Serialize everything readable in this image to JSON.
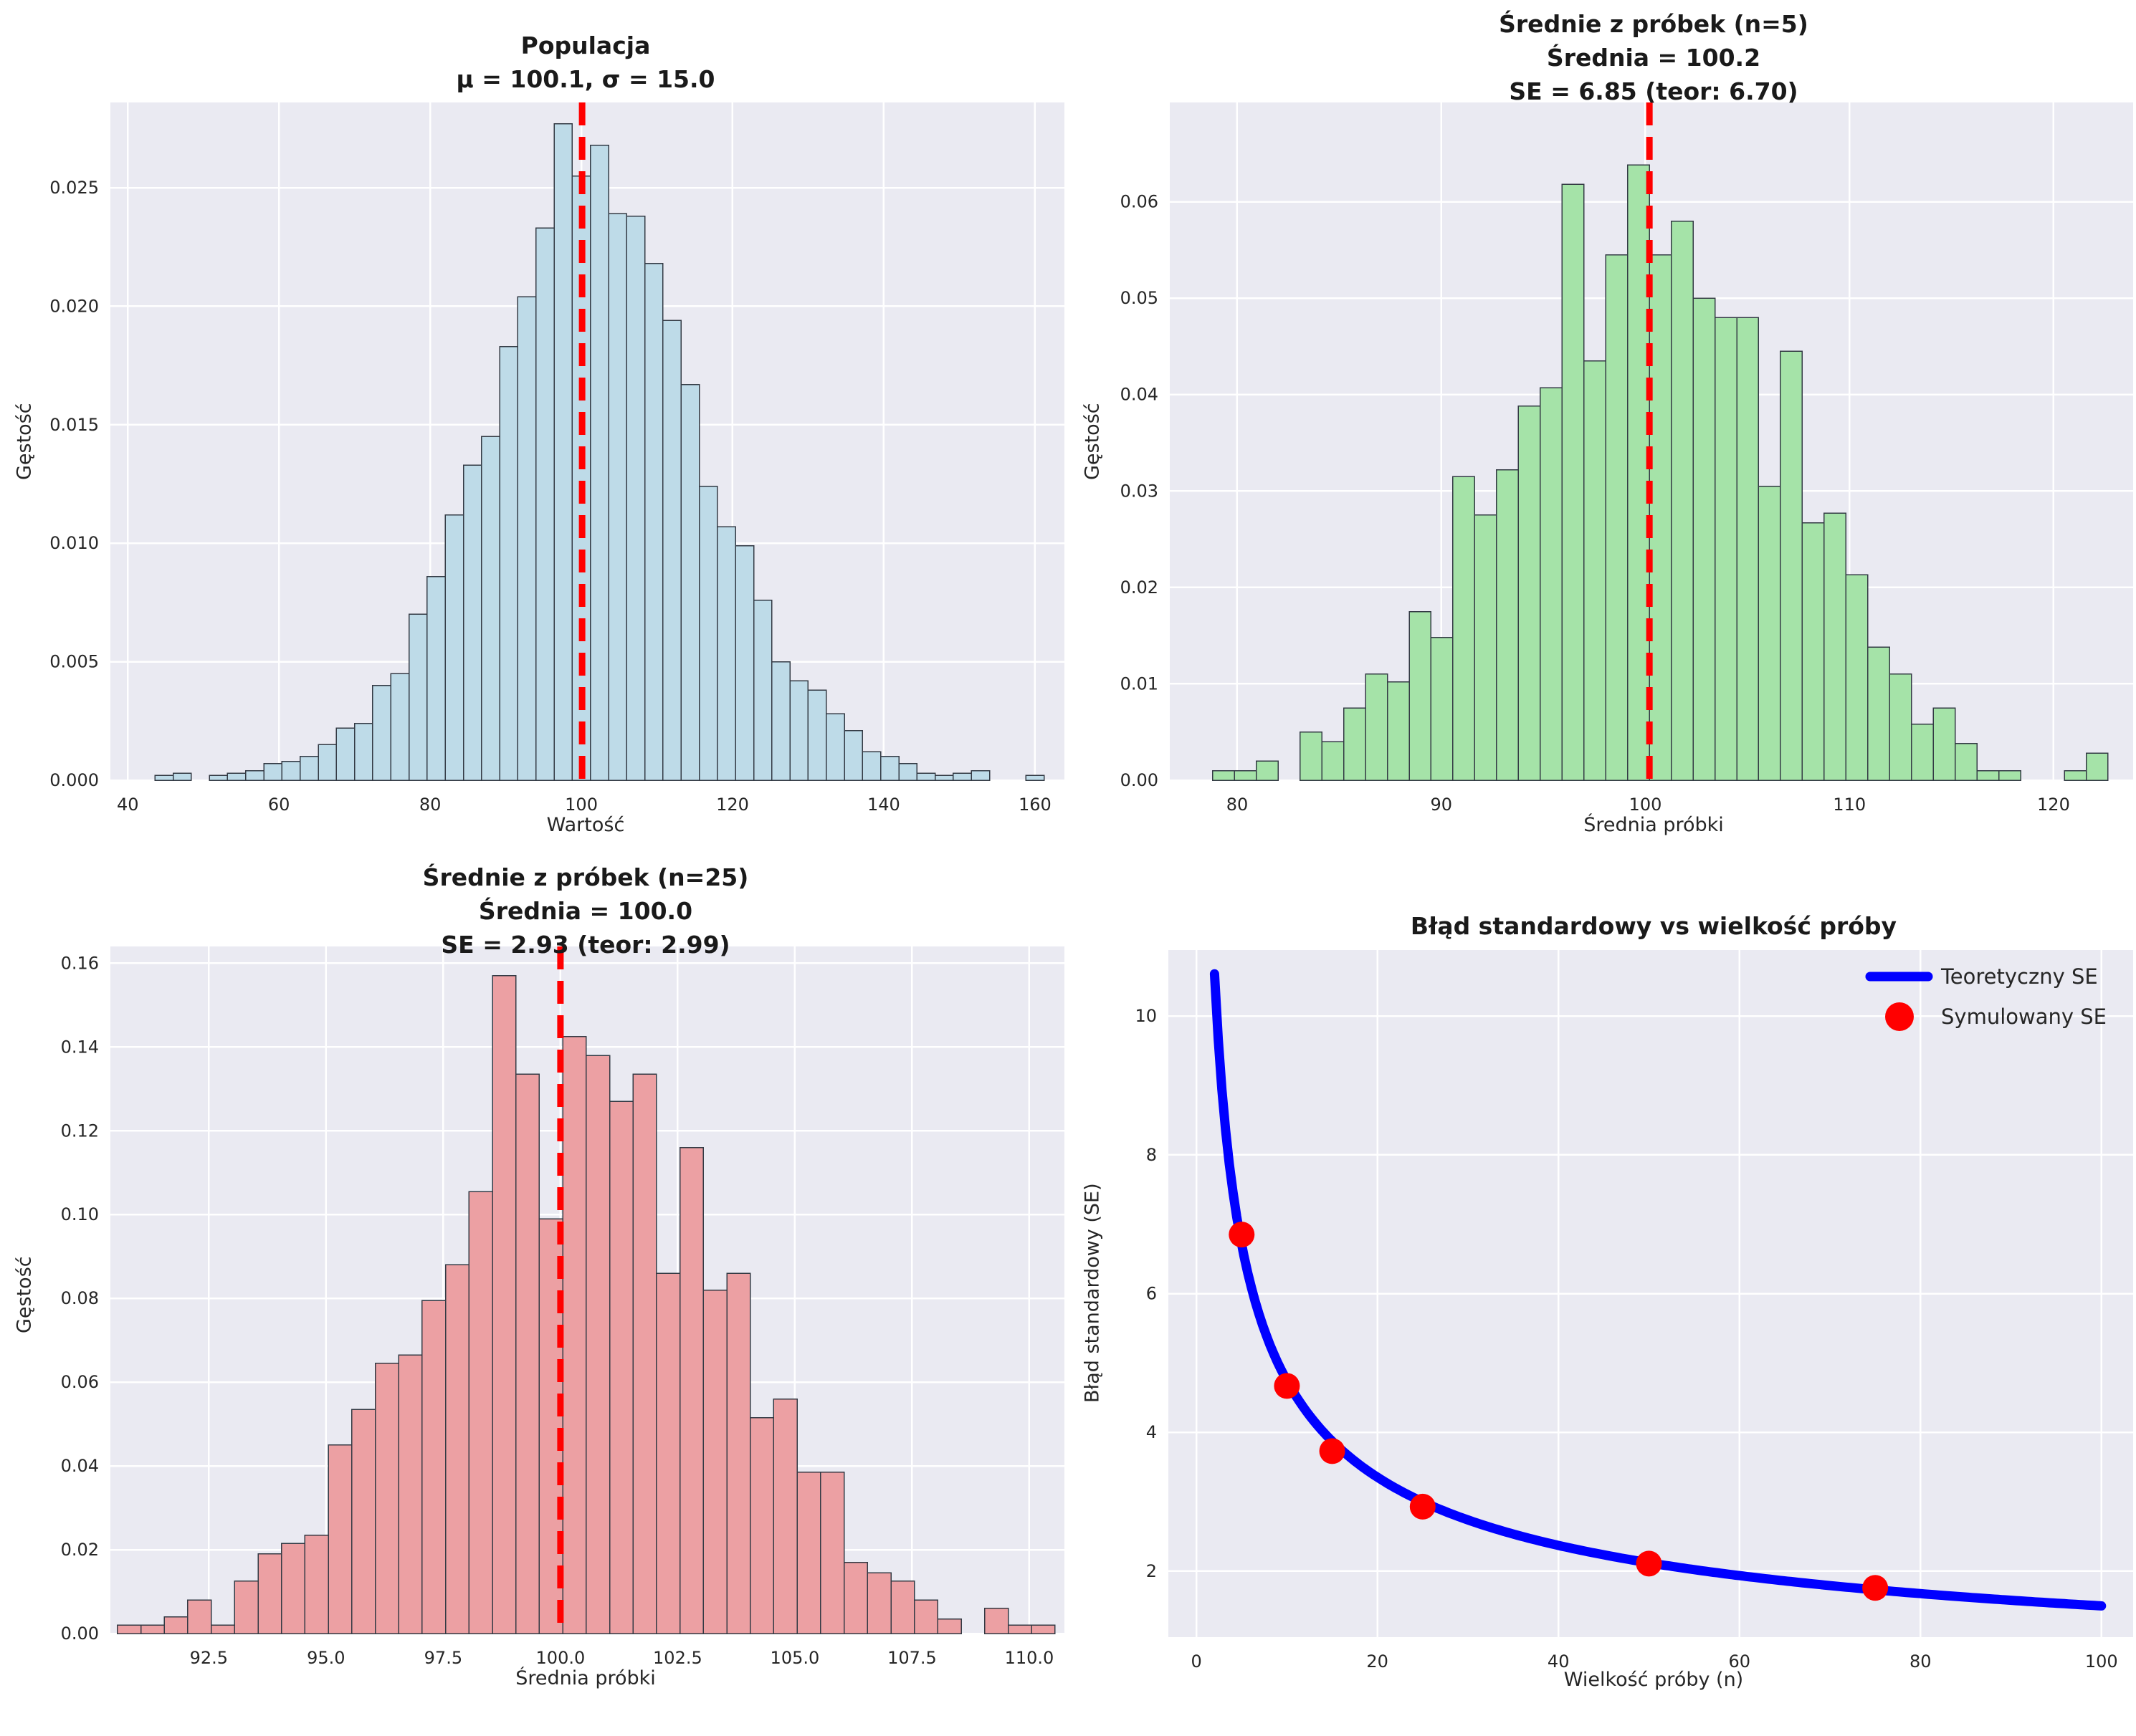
{
  "figure": {
    "background": "#ffffff",
    "plot_background": "#eaeaf2",
    "grid_color": "#ffffff",
    "text_color": "#262626",
    "title_color": "#1a1a1a",
    "mean_line_color": "#ff0000"
  },
  "chart_data": [
    {
      "id": "population-histogram",
      "type": "bar",
      "title_lines": [
        "Populacja",
        "μ = 100.1, σ = 15.0"
      ],
      "mu": 100.1,
      "sigma": 15.0,
      "xlabel": "Wartość",
      "ylabel": "Gęstość",
      "bar_color": "#bedbe8",
      "bar_edge_color": "#333a44",
      "mean_line_x": 100.1,
      "x_range": [
        37.7,
        163.9
      ],
      "y_range": [
        0,
        0.0286
      ],
      "x_ticks": [
        40,
        60,
        80,
        100,
        120,
        140,
        160
      ],
      "y_ticks": [
        0.0,
        0.005,
        0.01,
        0.015,
        0.02,
        0.025
      ],
      "x_tick_decimals": 0,
      "y_tick_decimals": 3,
      "bins": {
        "start": 43.6,
        "width": 2.4,
        "heights": [
          0.0002,
          0.0003,
          0,
          0.0002,
          0.0003,
          0.0004,
          0.0007,
          0.0008,
          0.001,
          0.0015,
          0.0022,
          0.0024,
          0.004,
          0.0045,
          0.007,
          0.0086,
          0.0112,
          0.0133,
          0.0145,
          0.0183,
          0.0204,
          0.0233,
          0.0277,
          0.0255,
          0.0268,
          0.0239,
          0.0238,
          0.0218,
          0.0194,
          0.0167,
          0.0124,
          0.0107,
          0.0099,
          0.0076,
          0.005,
          0.0042,
          0.0038,
          0.0028,
          0.0021,
          0.0012,
          0.001,
          0.0007,
          0.0003,
          0.0002,
          0.0003,
          0.0004,
          0,
          0,
          0.0002
        ]
      }
    },
    {
      "id": "sample-means-n5-histogram",
      "type": "bar",
      "title_lines": [
        "Średnie z próbek (n=5)",
        "Średnia = 100.2",
        "SE = 6.85 (teor: 6.70)"
      ],
      "sample_size": 5,
      "mean": 100.2,
      "se_simulated": 6.85,
      "se_theoretical": 6.7,
      "xlabel": "Średnia próbki",
      "ylabel": "Gęstość",
      "bar_color": "#a5e3a8",
      "bar_edge_color": "#333a44",
      "mean_line_x": 100.2,
      "x_range": [
        76.7,
        123.9
      ],
      "y_range": [
        0,
        0.0703
      ],
      "x_ticks": [
        80,
        90,
        100,
        110,
        120
      ],
      "y_ticks": [
        0.0,
        0.01,
        0.02,
        0.03,
        0.04,
        0.05,
        0.06
      ],
      "x_tick_decimals": 0,
      "y_tick_decimals": 2,
      "bins": {
        "start": 78.8,
        "width": 1.07,
        "heights": [
          0.001,
          0.001,
          0.002,
          0,
          0.005,
          0.004,
          0.0075,
          0.011,
          0.0102,
          0.0175,
          0.0148,
          0.0315,
          0.0275,
          0.0322,
          0.0388,
          0.0407,
          0.0618,
          0.0435,
          0.0545,
          0.0638,
          0.0545,
          0.058,
          0.05,
          0.048,
          0.048,
          0.0305,
          0.0445,
          0.0267,
          0.0277,
          0.0213,
          0.0138,
          0.011,
          0.0058,
          0.0075,
          0.0038,
          0.001,
          0.001,
          0,
          0,
          0.001,
          0.0028
        ]
      }
    },
    {
      "id": "sample-means-n25-histogram",
      "type": "bar",
      "title_lines": [
        "Średnie z próbek (n=25)",
        "Średnia = 100.0",
        "SE = 2.93 (teor: 2.99)"
      ],
      "sample_size": 25,
      "mean": 100.0,
      "se_simulated": 2.93,
      "se_theoretical": 2.99,
      "xlabel": "Średnia próbki",
      "ylabel": "Gęstość",
      "bar_color": "#eca0a3",
      "bar_edge_color": "#333a44",
      "mean_line_x": 100.0,
      "x_range": [
        90.4,
        110.75
      ],
      "y_range": [
        0,
        0.164
      ],
      "x_ticks": [
        92.5,
        95.0,
        97.5,
        100.0,
        102.5,
        105.0,
        107.5,
        110.0
      ],
      "y_ticks": [
        0.0,
        0.02,
        0.04,
        0.06,
        0.08,
        0.1,
        0.12,
        0.14,
        0.16
      ],
      "x_tick_decimals": 1,
      "y_tick_decimals": 2,
      "bins": {
        "start": 90.55,
        "width": 0.5,
        "heights": [
          0.002,
          0.002,
          0.004,
          0.008,
          0.002,
          0.0125,
          0.019,
          0.0215,
          0.0235,
          0.045,
          0.0535,
          0.0645,
          0.0665,
          0.0795,
          0.088,
          0.1055,
          0.157,
          0.1335,
          0.099,
          0.1425,
          0.138,
          0.127,
          0.1335,
          0.086,
          0.116,
          0.082,
          0.086,
          0.0515,
          0.056,
          0.0385,
          0.0385,
          0.017,
          0.0145,
          0.0125,
          0.008,
          0.0035,
          0,
          0.006,
          0.002,
          0.002
        ]
      }
    },
    {
      "id": "standard-error-vs-sample-size",
      "type": "line",
      "title_lines": [
        "Błąd standardowy vs wielkość próby"
      ],
      "xlabel": "Wielkość próby (n)",
      "ylabel": "Błąd standardowy (SE)",
      "x_range": [
        -3.1,
        103.5
      ],
      "y_range": [
        1.05,
        10.95
      ],
      "x_ticks": [
        0,
        20,
        40,
        60,
        80,
        100
      ],
      "y_ticks": [
        2,
        4,
        6,
        8,
        10
      ],
      "x_tick_decimals": 0,
      "y_tick_decimals": 0,
      "curve": {
        "label": "Teoretyczny SE",
        "color": "#0000ff",
        "sigma": 15,
        "n_start": 2,
        "n_end": 100
      },
      "sim_points": {
        "label": "Symulowany SE",
        "color": "#ff0000",
        "n": [
          5,
          10,
          15,
          25,
          50,
          75
        ],
        "se": [
          6.85,
          4.67,
          3.73,
          2.93,
          2.11,
          1.76
        ]
      },
      "legend_position": "upper right"
    }
  ]
}
